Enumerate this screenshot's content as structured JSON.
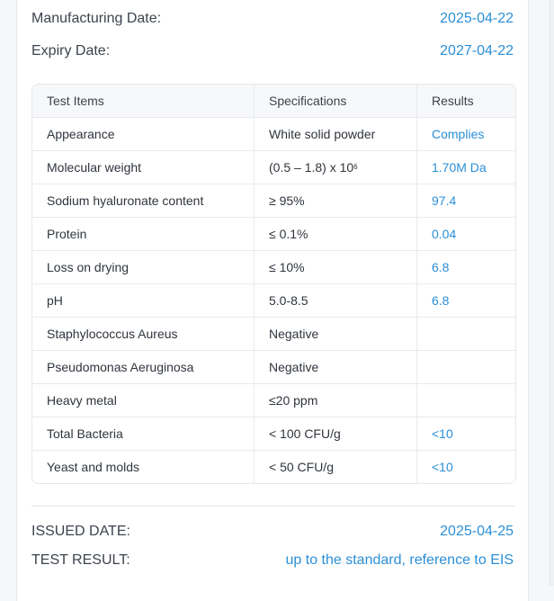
{
  "manufacturing": {
    "label": "Manufacturing Date:",
    "value": "2025-04-22"
  },
  "expiry": {
    "label": "Expiry Date:",
    "value": "2027-04-22"
  },
  "table": {
    "headers": [
      "Test Items",
      "Specifications",
      "Results"
    ],
    "rows": [
      {
        "item": "Appearance",
        "spec": "White solid powder",
        "result": "Complies"
      },
      {
        "item": "Molecular weight",
        "spec": "(0.5 – 1.8) x 10",
        "spec_sup": "6",
        "result": "1.70M Da"
      },
      {
        "item": "Sodium hyaluronate content",
        "spec": "≥ 95%",
        "result": "97.4"
      },
      {
        "item": "Protein",
        "spec": "≤ 0.1%",
        "result": "0.04"
      },
      {
        "item": "Loss on drying",
        "spec": "≤ 10%",
        "result": "6.8"
      },
      {
        "item": "pH",
        "spec": "5.0-8.5",
        "result": "6.8"
      },
      {
        "item": "Staphylococcus Aureus",
        "spec": "Negative",
        "result": ""
      },
      {
        "item": "Pseudomonas Aeruginosa",
        "spec": "Negative",
        "result": ""
      },
      {
        "item": "Heavy metal",
        "spec": "≤20 ppm",
        "result": ""
      },
      {
        "item": "Total Bacteria",
        "spec": "< 100 CFU/g",
        "result": "<10"
      },
      {
        "item": "Yeast and molds",
        "spec": "< 50 CFU/g",
        "result": "<10"
      }
    ]
  },
  "issued": {
    "label": "ISSUED DATE:",
    "value": "2025-04-25"
  },
  "test_result": {
    "label": "TEST RESULT:",
    "value": "up to the standard, reference to EIS"
  },
  "colors": {
    "accent": "#2b8fd6",
    "border": "#e4e6ea",
    "header_bg": "#f7f8fa"
  }
}
